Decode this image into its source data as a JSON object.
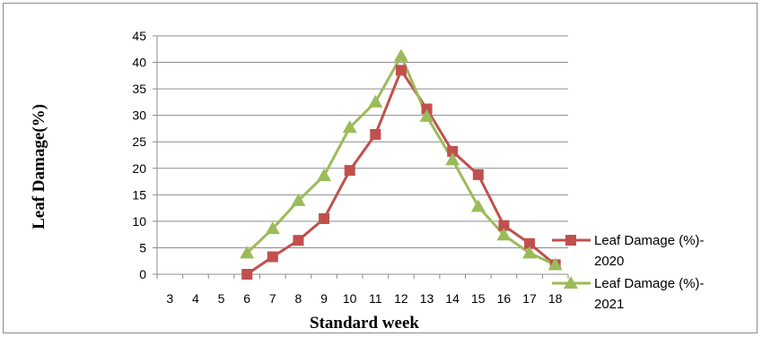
{
  "chart_data": {
    "type": "line",
    "title": "",
    "xlabel": "Standard week",
    "ylabel": "Leaf Damage(%)",
    "ylim": [
      0,
      45
    ],
    "ytick_step": 5,
    "categories": [
      "3",
      "4",
      "5",
      "6",
      "7",
      "8",
      "9",
      "10",
      "11",
      "12",
      "13",
      "14",
      "15",
      "16",
      "17",
      "18"
    ],
    "grid": "horizontal",
    "legend_position": "right",
    "series": [
      {
        "name": "Leaf Damage (%)-2020",
        "legend_lines": [
          "Leaf Damage (%)-",
          "2020"
        ],
        "color": "#c0504d",
        "marker": "square",
        "values": [
          null,
          null,
          null,
          0,
          3.3,
          6.4,
          10.5,
          19.6,
          26.4,
          38.5,
          31.2,
          23.2,
          18.8,
          9.2,
          5.8,
          1.8
        ]
      },
      {
        "name": "Leaf Damage (%)-2021",
        "legend_lines": [
          "Leaf Damage (%)-",
          "2021"
        ],
        "color": "#9bbb59",
        "marker": "triangle",
        "values": [
          null,
          null,
          null,
          4,
          8.6,
          13.9,
          18.6,
          27.7,
          32.5,
          41.2,
          29.8,
          21.6,
          12.8,
          7.4,
          4.0,
          1.8
        ]
      }
    ]
  }
}
